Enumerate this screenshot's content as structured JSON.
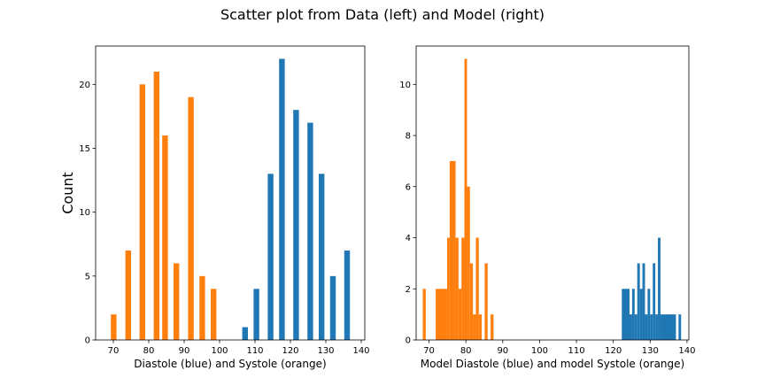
{
  "figure": {
    "suptitle": "Scatter plot from Data (left) and Model (right)"
  },
  "colors": {
    "blue": "#1f77b4",
    "orange": "#ff7f0e"
  },
  "chart_data": [
    {
      "type": "bar",
      "title": "",
      "xlabel": "Diastole (blue) and Systole (orange)",
      "ylabel": "Count",
      "xlim": [
        65,
        141
      ],
      "ylim": [
        0,
        23
      ],
      "xticks": [
        70,
        80,
        90,
        100,
        110,
        120,
        130,
        140
      ],
      "xtick_labels": [
        "70",
        "80",
        "90",
        "100",
        "110",
        "120",
        "130",
        "140"
      ],
      "yticks": [
        0,
        5,
        10,
        15,
        20
      ],
      "ytick_labels": [
        "0",
        "5",
        "10",
        "15",
        "20"
      ],
      "bar_width": 1.6,
      "series": [
        {
          "color": "#ff7f0e",
          "x": [
            70.1,
            74.2,
            78.2,
            82.2,
            84.6,
            87.8,
            91.9,
            95.1,
            98.3
          ],
          "values": [
            2,
            7,
            20,
            21,
            16,
            6,
            19,
            5,
            4
          ]
        },
        {
          "color": "#1f77b4",
          "x": [
            107.2,
            110.4,
            114.4,
            117.6,
            121.6,
            125.6,
            128.8,
            132.0,
            136.0
          ],
          "values": [
            1,
            4,
            13,
            22,
            18,
            17,
            13,
            5,
            7
          ]
        }
      ]
    },
    {
      "type": "bar",
      "title": "",
      "xlabel": "Model Diastole (blue) and model Systole (orange)",
      "ylabel": "",
      "xlim": [
        66.5,
        140.5
      ],
      "ylim": [
        0,
        11.5
      ],
      "xticks": [
        70,
        80,
        90,
        100,
        110,
        120,
        130,
        140
      ],
      "xtick_labels": [
        "70",
        "80",
        "90",
        "100",
        "110",
        "120",
        "130",
        "140"
      ],
      "yticks": [
        0,
        2,
        4,
        6,
        8,
        10
      ],
      "ytick_labels": [
        "0",
        "2",
        "4",
        "6",
        "8",
        "10"
      ],
      "series": [
        {
          "color": "#ff7f0e",
          "bins": [
            [
              68.3,
              69.1,
              2
            ],
            [
              71.8,
              72.5,
              2
            ],
            [
              72.5,
              74.9,
              2
            ],
            [
              74.9,
              75.6,
              4
            ],
            [
              75.6,
              77.2,
              7
            ],
            [
              77.2,
              78.0,
              4
            ],
            [
              78.0,
              78.8,
              2
            ],
            [
              78.8,
              79.6,
              4
            ],
            [
              79.6,
              80.3,
              11
            ],
            [
              80.3,
              81.1,
              6
            ],
            [
              81.1,
              81.9,
              3
            ],
            [
              81.9,
              82.7,
              1
            ],
            [
              82.7,
              83.5,
              4
            ],
            [
              83.5,
              84.3,
              1
            ],
            [
              84.3,
              85.1,
              0
            ],
            [
              85.1,
              85.9,
              3
            ],
            [
              86.7,
              87.5,
              1
            ]
          ]
        },
        {
          "color": "#1f77b4",
          "bins": [
            [
              122.3,
              124.4,
              2
            ],
            [
              124.4,
              125.1,
              1
            ],
            [
              125.1,
              125.8,
              2
            ],
            [
              125.8,
              126.5,
              1
            ],
            [
              126.5,
              127.2,
              3
            ],
            [
              127.2,
              127.9,
              2
            ],
            [
              127.9,
              128.6,
              3
            ],
            [
              128.6,
              129.3,
              1
            ],
            [
              129.3,
              130.0,
              2
            ],
            [
              130.0,
              130.7,
              1
            ],
            [
              130.7,
              131.4,
              3
            ],
            [
              131.4,
              132.1,
              1
            ],
            [
              132.1,
              132.8,
              4
            ],
            [
              132.8,
              137.0,
              1
            ],
            [
              137.7,
              138.4,
              1
            ]
          ]
        }
      ]
    }
  ]
}
